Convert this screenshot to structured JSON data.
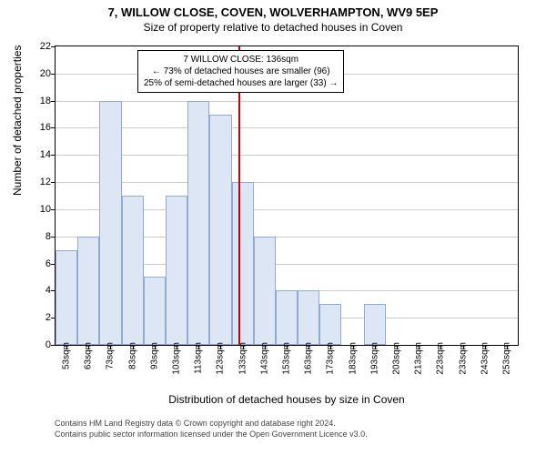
{
  "title": "7, WILLOW CLOSE, COVEN, WOLVERHAMPTON, WV9 5EP",
  "subtitle": "Size of property relative to detached houses in Coven",
  "chart": {
    "type": "histogram",
    "ylabel": "Number of detached properties",
    "xlabel": "Distribution of detached houses by size in Coven",
    "ylim": [
      0,
      22
    ],
    "ytick_step": 2,
    "bar_fill": "#dce6f5",
    "bar_stroke": "#8faad4",
    "background": "#ffffff",
    "grid_color": "#cccccc",
    "categories": [
      "53sqm",
      "63sqm",
      "73sqm",
      "83sqm",
      "93sqm",
      "103sqm",
      "113sqm",
      "123sqm",
      "133sqm",
      "143sqm",
      "153sqm",
      "163sqm",
      "173sqm",
      "183sqm",
      "193sqm",
      "203sqm",
      "213sqm",
      "223sqm",
      "233sqm",
      "243sqm",
      "253sqm"
    ],
    "values": [
      7,
      8,
      18,
      11,
      5,
      11,
      18,
      17,
      12,
      8,
      4,
      4,
      3,
      0,
      3,
      0,
      0,
      0,
      0,
      0,
      0
    ],
    "reference_line": {
      "index": 8,
      "fraction": 0.3,
      "color": "#cc0000"
    },
    "annotation": {
      "line1": "7 WILLOW CLOSE: 136sqm",
      "line2": "← 73% of detached houses are smaller (96)",
      "line3": "25% of semi-detached houses are larger (33) →"
    }
  },
  "footer": {
    "line1": "Contains HM Land Registry data © Crown copyright and database right 2024.",
    "line2": "Contains public sector information licensed under the Open Government Licence v3.0."
  }
}
